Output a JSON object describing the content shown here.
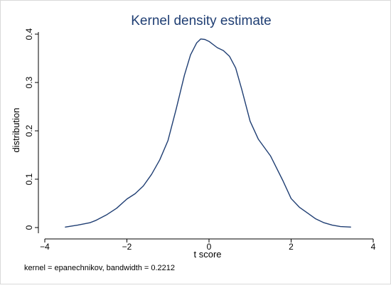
{
  "chart_data": {
    "type": "line",
    "title": "Kernel density estimate",
    "xlabel": "t score",
    "ylabel": "distribution",
    "note": "kernel = epanechnikov, bandwidth = 0.2212",
    "xlim": [
      -4,
      4
    ],
    "ylim": [
      0,
      0.4
    ],
    "xticks": [
      -4,
      -2,
      0,
      2,
      4
    ],
    "xtick_labels": [
      "−4",
      "−2",
      "0",
      "2",
      "4"
    ],
    "yticks": [
      0,
      0.1,
      0.2,
      0.3,
      0.4
    ],
    "ytick_labels": [
      "0",
      "0.1",
      "0.2",
      "0.3",
      "0.4"
    ],
    "grid": false,
    "legend": "none",
    "line_color": "#1f3e73",
    "background": "#ffffff",
    "plot_background": "#ffffff",
    "series": [
      {
        "x": [
          -3.5,
          -3.2,
          -2.9,
          -2.75,
          -2.5,
          -2.25,
          -2.0,
          -1.8,
          -1.6,
          -1.4,
          -1.2,
          -1.0,
          -0.8,
          -0.6,
          -0.45,
          -0.3,
          -0.2,
          -0.1,
          0.0,
          0.2,
          0.35,
          0.5,
          0.65,
          0.8,
          1.0,
          1.2,
          1.5,
          1.8,
          2.0,
          2.2,
          2.4,
          2.6,
          2.8,
          3.0,
          3.2,
          3.45
        ],
        "y": [
          0.001,
          0.005,
          0.01,
          0.015,
          0.026,
          0.04,
          0.059,
          0.07,
          0.086,
          0.11,
          0.14,
          0.18,
          0.245,
          0.315,
          0.357,
          0.382,
          0.39,
          0.389,
          0.385,
          0.372,
          0.366,
          0.354,
          0.33,
          0.285,
          0.22,
          0.183,
          0.148,
          0.097,
          0.06,
          0.042,
          0.03,
          0.018,
          0.01,
          0.005,
          0.002,
          0.001
        ]
      }
    ]
  }
}
